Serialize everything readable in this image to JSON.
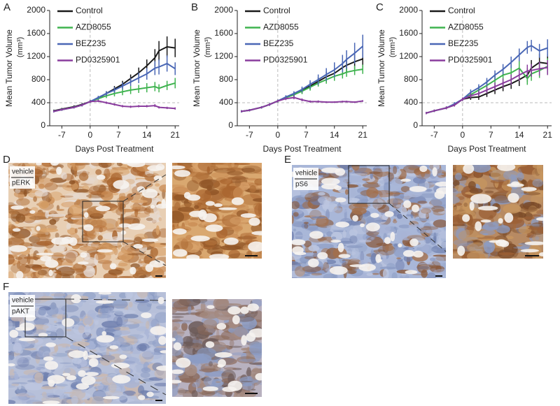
{
  "chart_data": [
    {
      "type": "line",
      "panel_label": "A",
      "xlabel": "Days Post Treatment",
      "ylabel": "Mean Tumor Volume",
      "ylabel_unit": "(mm³)",
      "x": [
        -9,
        -7,
        -4,
        -2,
        0,
        2,
        4,
        6,
        8,
        10,
        12,
        14,
        16,
        17,
        19,
        21
      ],
      "xlim": [
        -10,
        22
      ],
      "ylim": [
        0,
        2000
      ],
      "xticks": [
        -7,
        0,
        7,
        14,
        21
      ],
      "yticks": [
        0,
        400,
        800,
        1200,
        1600,
        2000
      ],
      "hlines": [
        400
      ],
      "vlines": [
        0
      ],
      "legend": "upper left",
      "series": [
        {
          "name": "Control",
          "color": "#1a1a1a",
          "values": [
            260,
            290,
            330,
            370,
            420,
            480,
            560,
            640,
            720,
            820,
            920,
            1040,
            1180,
            1300,
            1370,
            1350
          ],
          "errors": [
            20,
            20,
            25,
            25,
            25,
            30,
            40,
            50,
            60,
            70,
            90,
            110,
            150,
            170,
            180,
            160
          ]
        },
        {
          "name": "AZD8055",
          "color": "#3fb34f",
          "values": [
            250,
            280,
            320,
            360,
            420,
            470,
            520,
            560,
            590,
            620,
            640,
            660,
            680,
            650,
            700,
            740
          ],
          "errors": [
            20,
            20,
            20,
            25,
            25,
            30,
            40,
            50,
            60,
            70,
            70,
            80,
            80,
            70,
            80,
            90
          ]
        },
        {
          "name": "BEZ235",
          "color": "#4a67b5",
          "values": [
            250,
            280,
            320,
            360,
            420,
            490,
            560,
            620,
            690,
            760,
            830,
            900,
            1000,
            1020,
            1080,
            990
          ],
          "errors": [
            20,
            20,
            20,
            25,
            25,
            30,
            40,
            50,
            60,
            70,
            90,
            100,
            120,
            130,
            140,
            110
          ]
        },
        {
          "name": "PD0325901",
          "color": "#8a3d9e",
          "values": [
            250,
            280,
            320,
            360,
            420,
            430,
            400,
            370,
            340,
            330,
            340,
            340,
            350,
            320,
            310,
            300
          ],
          "errors": [
            15,
            15,
            15,
            20,
            20,
            20,
            20,
            20,
            20,
            20,
            20,
            20,
            25,
            20,
            20,
            20
          ]
        }
      ]
    },
    {
      "type": "line",
      "panel_label": "B",
      "xlabel": "Days Post Treatment",
      "ylabel": "Mean Tumor Volume",
      "ylabel_unit": "(mm³)",
      "x": [
        -9,
        -7,
        -4,
        -2,
        0,
        2,
        4,
        6,
        8,
        10,
        12,
        14,
        16,
        17,
        19,
        21
      ],
      "xlim": [
        -10,
        22
      ],
      "ylim": [
        0,
        2000
      ],
      "xticks": [
        -7,
        0,
        7,
        14,
        21
      ],
      "yticks": [
        0,
        400,
        800,
        1200,
        1600,
        2000
      ],
      "hlines": [
        400
      ],
      "vlines": [
        0
      ],
      "legend": "upper left",
      "series": [
        {
          "name": "Control",
          "color": "#1a1a1a",
          "values": [
            250,
            270,
            320,
            370,
            430,
            490,
            540,
            610,
            690,
            770,
            850,
            910,
            1010,
            1050,
            1110,
            1160
          ],
          "errors": [
            20,
            20,
            20,
            25,
            25,
            30,
            40,
            50,
            60,
            70,
            90,
            100,
            110,
            120,
            130,
            150
          ]
        },
        {
          "name": "AZD8055",
          "color": "#3fb34f",
          "values": [
            250,
            270,
            320,
            370,
            430,
            490,
            540,
            600,
            670,
            740,
            800,
            860,
            900,
            930,
            960,
            980
          ],
          "errors": [
            20,
            20,
            20,
            25,
            25,
            30,
            40,
            50,
            60,
            60,
            70,
            80,
            80,
            80,
            80,
            80
          ]
        },
        {
          "name": "BEZ235",
          "color": "#4a67b5",
          "values": [
            250,
            270,
            320,
            370,
            430,
            500,
            560,
            630,
            720,
            800,
            890,
            970,
            1080,
            1150,
            1260,
            1380
          ],
          "errors": [
            20,
            20,
            20,
            25,
            25,
            30,
            40,
            50,
            70,
            90,
            110,
            130,
            150,
            160,
            180,
            200
          ]
        },
        {
          "name": "PD0325901",
          "color": "#8a3d9e",
          "values": [
            250,
            270,
            320,
            370,
            430,
            470,
            490,
            450,
            420,
            420,
            410,
            410,
            420,
            420,
            410,
            430
          ],
          "errors": [
            15,
            15,
            15,
            20,
            20,
            25,
            30,
            25,
            20,
            20,
            15,
            15,
            15,
            15,
            15,
            15
          ]
        }
      ]
    },
    {
      "type": "line",
      "panel_label": "C",
      "xlabel": "Days Post Treatment",
      "ylabel": "Mean Tumor Volume",
      "ylabel_unit": "(mm³)",
      "x": [
        -9,
        -7,
        -4,
        -2,
        0,
        2,
        4,
        6,
        8,
        10,
        12,
        14,
        16,
        17,
        19,
        21
      ],
      "xlim": [
        -10,
        22
      ],
      "ylim": [
        0,
        2000
      ],
      "xticks": [
        -7,
        0,
        7,
        14,
        21
      ],
      "yticks": [
        0,
        400,
        800,
        1200,
        1600,
        2000
      ],
      "hlines": [
        400
      ],
      "vlines": [
        0
      ],
      "legend": "upper left",
      "series": [
        {
          "name": "Control",
          "color": "#1a1a1a",
          "values": [
            220,
            260,
            310,
            360,
            460,
            490,
            500,
            560,
            620,
            680,
            730,
            800,
            880,
            1000,
            1100,
            1080
          ],
          "errors": [
            20,
            20,
            25,
            25,
            30,
            40,
            50,
            60,
            70,
            80,
            90,
            110,
            120,
            140,
            150,
            160
          ]
        },
        {
          "name": "AZD8055",
          "color": "#3fb34f",
          "values": [
            220,
            260,
            310,
            370,
            460,
            540,
            620,
            700,
            790,
            880,
            920,
            1000,
            820,
            900,
            960,
            1030
          ],
          "errors": [
            20,
            20,
            25,
            25,
            30,
            50,
            70,
            90,
            110,
            120,
            130,
            150,
            110,
            120,
            130,
            140
          ]
        },
        {
          "name": "BEZ235",
          "color": "#4a67b5",
          "values": [
            220,
            260,
            310,
            380,
            460,
            580,
            660,
            760,
            880,
            980,
            1100,
            1230,
            1360,
            1390,
            1300,
            1350
          ],
          "errors": [
            20,
            20,
            25,
            30,
            30,
            50,
            60,
            70,
            80,
            90,
            100,
            110,
            110,
            100,
            120,
            150
          ]
        },
        {
          "name": "PD0325901",
          "color": "#8a3d9e",
          "values": [
            220,
            260,
            310,
            360,
            460,
            520,
            560,
            620,
            680,
            740,
            800,
            880,
            950,
            960,
            990,
            1010
          ],
          "errors": [
            20,
            20,
            25,
            25,
            30,
            40,
            50,
            60,
            70,
            80,
            90,
            100,
            110,
            110,
            120,
            130
          ]
        }
      ]
    }
  ],
  "panels": [
    {
      "letter": "D",
      "label_top": "vehicle",
      "label_bottom": "pERK"
    },
    {
      "letter": "E",
      "label_top": "vehicle",
      "label_bottom": "pS6"
    },
    {
      "letter": "F",
      "label_top": "vehicle",
      "label_bottom": "pAKT"
    }
  ]
}
